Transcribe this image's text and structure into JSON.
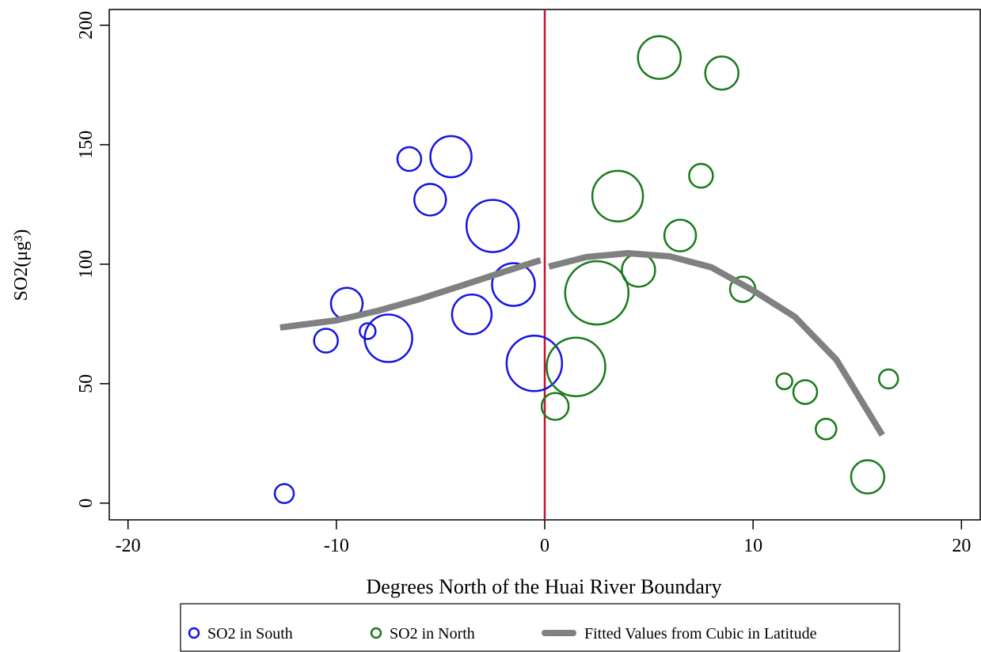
{
  "chart_data": {
    "type": "scatter",
    "x_label": "Degrees North of the Huai River Boundary",
    "y_label": "SO2(μg³)",
    "xlim": [
      -20.9,
      20.9
    ],
    "ylim": [
      -7,
      206.6
    ],
    "xticks": [
      -20,
      -10,
      0,
      10,
      20
    ],
    "yticks": [
      0,
      50,
      100,
      150,
      200
    ],
    "vline": {
      "x": 0,
      "color": "#c8102e"
    },
    "series": [
      {
        "name": "SO2 in South",
        "color": "#1414e6",
        "type": "scatter",
        "x": [
          -12.5,
          -10.5,
          -9.5,
          -8.5,
          -7.5,
          -6.5,
          -5.5,
          -4.5,
          -3.5,
          -2.5,
          -1.5,
          -0.5
        ],
        "values": [
          4,
          68,
          83.5,
          72,
          69,
          144,
          127,
          145,
          79,
          116,
          91.5,
          58.5
        ],
        "sizes": [
          12,
          15,
          20,
          10,
          30,
          15,
          20,
          26,
          25,
          33,
          27,
          35
        ]
      },
      {
        "name": "SO2 in North",
        "color": "#1a7a1a",
        "type": "scatter",
        "x": [
          0.5,
          1.5,
          2.5,
          3.5,
          4.5,
          5.5,
          6.5,
          7.5,
          8.5,
          9.5,
          11.5,
          12.5,
          13.5,
          15.5,
          16.5
        ],
        "values": [
          40.5,
          57,
          88,
          128.5,
          97.5,
          186.5,
          112,
          137,
          180,
          89.5,
          51,
          46.5,
          31,
          11,
          52
        ],
        "sizes": [
          17,
          37,
          40,
          32,
          21,
          27,
          20,
          15,
          21,
          16,
          10,
          15,
          13,
          21,
          12
        ]
      },
      {
        "name": "Fitted Values from Cubic in Latitude",
        "color": "#808080",
        "type": "line",
        "x": [
          -12.7,
          -10,
          -8,
          -6,
          -4,
          -2,
          -0.2,
          0,
          0.2,
          2,
          4,
          6,
          8,
          10,
          12,
          14,
          16.2
        ],
        "values": [
          73.5,
          76.5,
          80.5,
          85.4,
          91,
          96.7,
          101.7,
          null,
          99,
          103,
          104.6,
          103.3,
          98.7,
          89,
          78,
          60,
          28.5
        ]
      }
    ]
  }
}
